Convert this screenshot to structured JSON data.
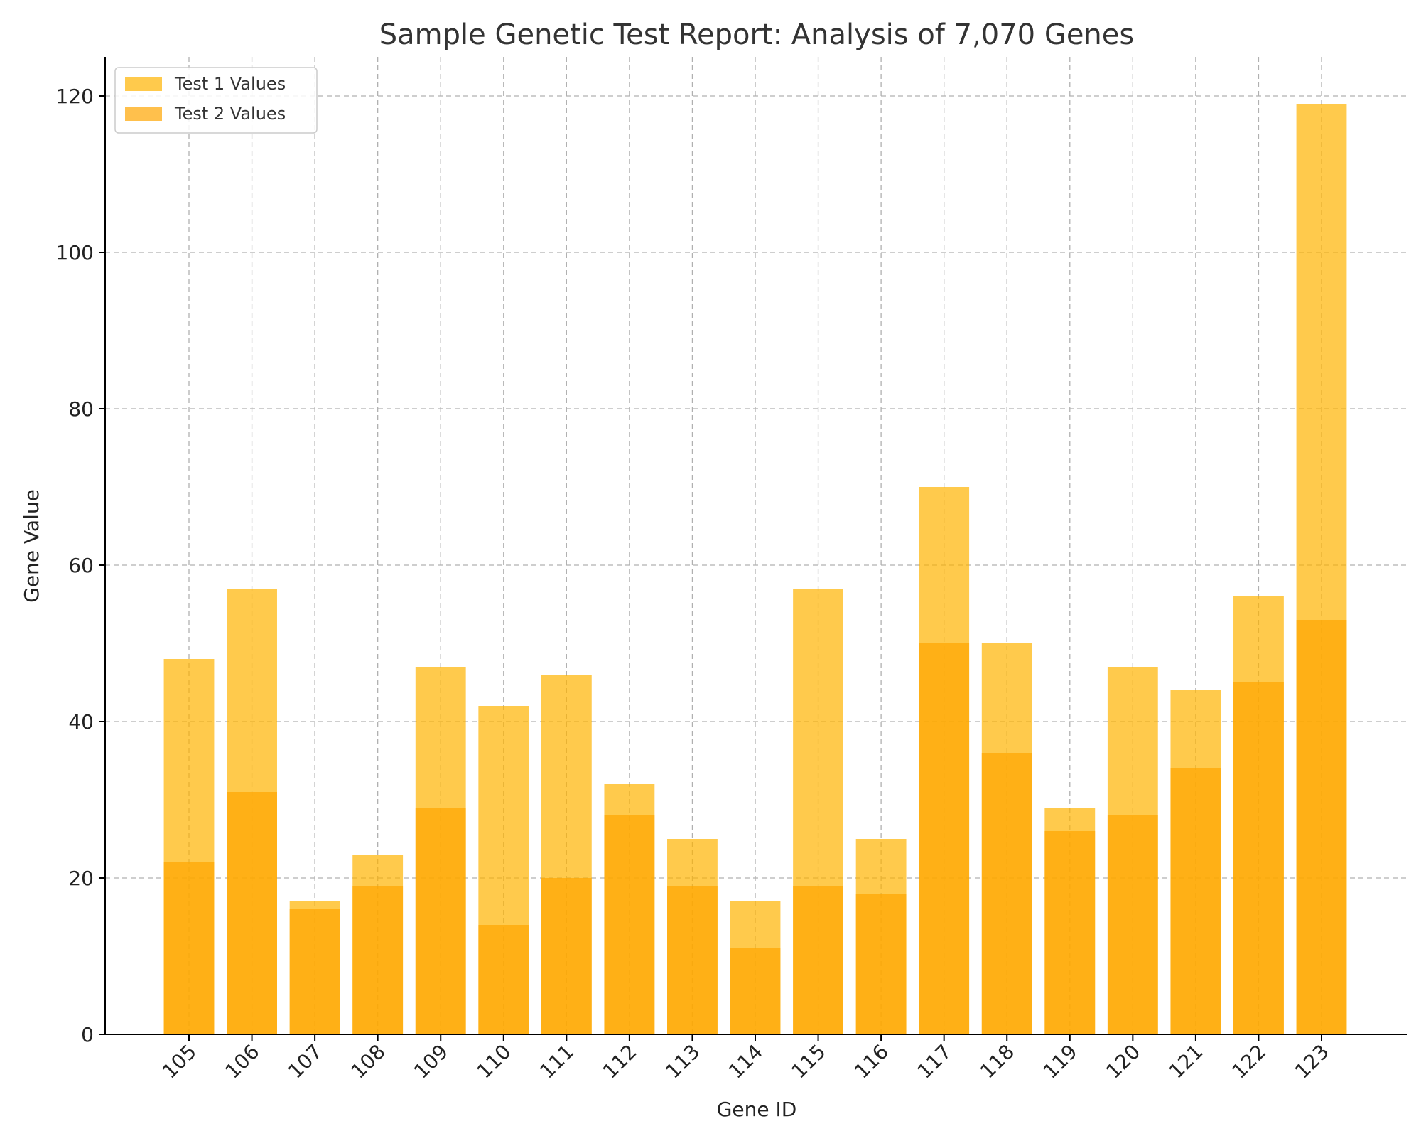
{
  "chart_data": {
    "type": "bar",
    "title": "Sample Genetic Test Report: Analysis of 7,070 Genes",
    "xlabel": "Gene ID",
    "ylabel": "Gene Value",
    "ylim": [
      0,
      125
    ],
    "yticks": [
      0,
      20,
      40,
      60,
      80,
      100,
      120
    ],
    "grid": true,
    "legend_position": "top-left",
    "overlay": true,
    "categories": [
      "105",
      "106",
      "107",
      "108",
      "109",
      "110",
      "111",
      "112",
      "113",
      "114",
      "115",
      "116",
      "117",
      "118",
      "119",
      "120",
      "121",
      "122",
      "123"
    ],
    "series": [
      {
        "name": "Test 1 Values",
        "color": "#ffb300",
        "opacity": 0.7,
        "values": [
          48,
          57,
          17,
          23,
          47,
          42,
          46,
          32,
          25,
          17,
          57,
          25,
          70,
          50,
          29,
          47,
          44,
          56,
          119
        ]
      },
      {
        "name": "Test 2 Values",
        "color": "#ffa500",
        "opacity": 0.7,
        "values": [
          22,
          31,
          16,
          19,
          29,
          14,
          20,
          28,
          19,
          11,
          19,
          18,
          50,
          36,
          26,
          28,
          34,
          45,
          53
        ]
      }
    ]
  }
}
